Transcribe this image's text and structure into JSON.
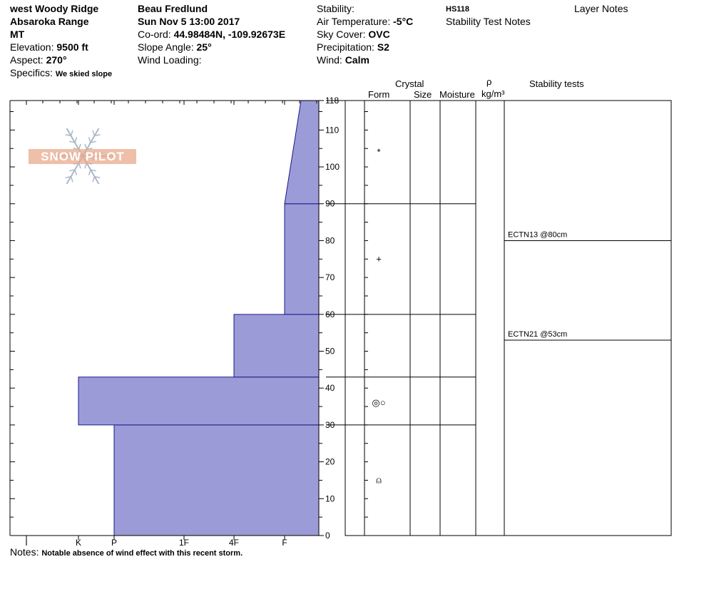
{
  "header": {
    "col1": {
      "location": "west Woody Ridge",
      "range": "Absaroka Range",
      "state": "MT",
      "elevation_label": "Elevation:",
      "elevation_value": "9500 ft",
      "aspect_label": "Aspect:",
      "aspect_value": "270°",
      "specifics_label": "Specifics:",
      "specifics_value": "We skied slope"
    },
    "col2": {
      "observer": "Beau  Fredlund",
      "datetime": "Sun Nov 5 13:00 2017",
      "coord_label": "Co-ord:",
      "coord_value": "44.98484N, -109.92673E",
      "slope_label": "Slope Angle:",
      "slope_value": "25°",
      "wind_loading_label": "Wind Loading:"
    },
    "col3": {
      "stability_label": "Stability:",
      "air_temp_label": "Air Temperature:",
      "air_temp_value": "-5°C",
      "sky_label": "Sky Cover:",
      "sky_value": "OVC",
      "precip_label": "Precipitation:",
      "precip_value": "S2",
      "wind_label": "Wind:",
      "wind_value": "Calm"
    },
    "col4": {
      "hs": "HS118",
      "stability_notes": "Stability Test Notes"
    },
    "layer_notes": "Layer Notes"
  },
  "table_headers": {
    "crystal": "Crystal",
    "form": "Form",
    "size": "Size",
    "moisture": "Moisture",
    "rho": "ρ",
    "density_unit": "kg/m³",
    "stability_tests": "Stability tests"
  },
  "logo_text": "SNOW PILOT",
  "notes": {
    "label": "Notes:",
    "value": "Notable absence of wind effect with this recent storm."
  },
  "colors": {
    "hardness_fill": "#9b9bd8",
    "hardness_stroke": "#1a1a8c",
    "logo_orange": "#e8a98c",
    "logo_blue": "#aab8c8"
  },
  "chart_data": {
    "type": "bar",
    "title": "",
    "xlabel": "",
    "ylabel": "",
    "hardness_scale": [
      "I",
      "K",
      "P",
      "1F",
      "4F",
      "F"
    ],
    "hardness_scale_direction": "harder to the left",
    "ylim": [
      0,
      118
    ],
    "y_ticks": [
      0,
      10,
      20,
      30,
      40,
      50,
      60,
      70,
      80,
      90,
      100,
      110,
      118
    ],
    "layers": [
      {
        "bottom": 0,
        "top": 30,
        "hardness_bottom": "P",
        "hardness_top": "P"
      },
      {
        "bottom": 30,
        "top": 43,
        "hardness_bottom": "K",
        "hardness_top": "K"
      },
      {
        "bottom": 43,
        "top": 60,
        "hardness_bottom": "4F",
        "hardness_top": "4F"
      },
      {
        "bottom": 60,
        "top": 90,
        "hardness_bottom": "F",
        "hardness_top": "F"
      },
      {
        "bottom": 90,
        "top": 118,
        "hardness_bottom": "F",
        "hardness_top": "F-"
      }
    ],
    "layer_boundaries": [
      30,
      43,
      60,
      90,
      118
    ],
    "crystal_forms": [
      {
        "height": 104,
        "symbol": "*"
      },
      {
        "height": 75,
        "symbol": "+"
      },
      {
        "height": 36,
        "symbol": "◎○"
      },
      {
        "height": 15,
        "symbol": "⍝"
      }
    ],
    "stability_tests": [
      {
        "label": "ECTN13 @80cm",
        "height": 80
      },
      {
        "label": "ECTN21 @53cm",
        "height": 53
      }
    ]
  }
}
